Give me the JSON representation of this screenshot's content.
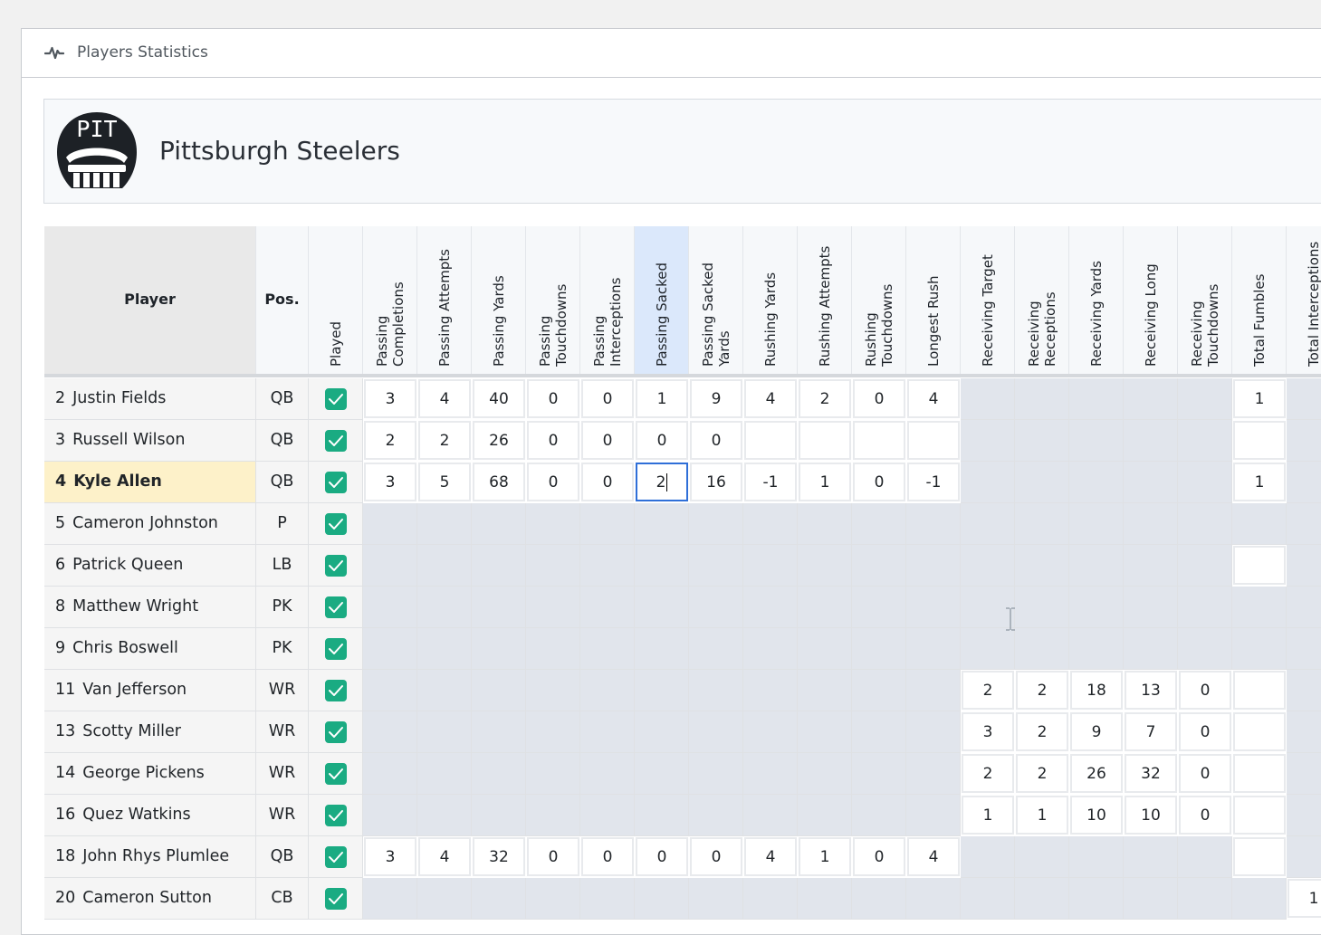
{
  "header": {
    "title": "Players Statistics",
    "icon": "pulse-icon"
  },
  "team": {
    "name": "Pittsburgh Steelers",
    "abbr": "PIT"
  },
  "columns": {
    "player": "Player",
    "pos": "Pos.",
    "played": "Played",
    "stats": [
      [
        "Passing",
        "Completions"
      ],
      [
        "Passing Attempts"
      ],
      [
        "Passing Yards"
      ],
      [
        "Passing",
        "Touchdowns"
      ],
      [
        "Passing",
        "Interceptions"
      ],
      [
        "Passing Sacked"
      ],
      [
        "Passing Sacked",
        "Yards"
      ],
      [
        "Rushing Yards"
      ],
      [
        "Rushing Attempts"
      ],
      [
        "Rushing",
        "Touchdowns"
      ],
      [
        "Longest Rush"
      ],
      [
        "Receiving Target"
      ],
      [
        "Receiving",
        "Receptions"
      ],
      [
        "Receiving Yards"
      ],
      [
        "Receiving Long"
      ],
      [
        "Receiving",
        "Touchdowns"
      ],
      [
        "Total Fumbles"
      ],
      [
        "Total Interceptions"
      ]
    ],
    "selected_stat_index": 5
  },
  "rows": [
    {
      "num": "2",
      "name": "Justin Fields",
      "pos": "QB",
      "played": true,
      "stats": [
        "3",
        "4",
        "40",
        "0",
        "0",
        "1",
        "9",
        "4",
        "2",
        "0",
        "4",
        null,
        null,
        null,
        null,
        null,
        "1",
        null
      ]
    },
    {
      "num": "3",
      "name": "Russell Wilson",
      "pos": "QB",
      "played": true,
      "stats": [
        "2",
        "2",
        "26",
        "0",
        "0",
        "0",
        "0",
        "",
        "",
        "",
        "",
        null,
        null,
        null,
        null,
        null,
        "",
        null
      ]
    },
    {
      "num": "4",
      "name": "Kyle Allen",
      "pos": "QB",
      "played": true,
      "highlighted": true,
      "stats": [
        "3",
        "5",
        "68",
        "0",
        "0",
        "2",
        "16",
        "-1",
        "1",
        "0",
        "-1",
        null,
        null,
        null,
        null,
        null,
        "1",
        null
      ]
    },
    {
      "num": "5",
      "name": "Cameron Johnston",
      "pos": "P",
      "played": true,
      "stats": [
        null,
        null,
        null,
        null,
        null,
        null,
        null,
        null,
        null,
        null,
        null,
        null,
        null,
        null,
        null,
        null,
        null,
        null
      ]
    },
    {
      "num": "6",
      "name": "Patrick Queen",
      "pos": "LB",
      "played": true,
      "stats": [
        null,
        null,
        null,
        null,
        null,
        null,
        null,
        null,
        null,
        null,
        null,
        null,
        null,
        null,
        null,
        null,
        "",
        null
      ]
    },
    {
      "num": "8",
      "name": "Matthew Wright",
      "pos": "PK",
      "played": true,
      "stats": [
        null,
        null,
        null,
        null,
        null,
        null,
        null,
        null,
        null,
        null,
        null,
        null,
        null,
        null,
        null,
        null,
        null,
        null
      ]
    },
    {
      "num": "9",
      "name": "Chris Boswell",
      "pos": "PK",
      "played": true,
      "stats": [
        null,
        null,
        null,
        null,
        null,
        null,
        null,
        null,
        null,
        null,
        null,
        null,
        null,
        null,
        null,
        null,
        null,
        null
      ]
    },
    {
      "num": "11",
      "name": "Van Jefferson",
      "pos": "WR",
      "played": true,
      "stats": [
        null,
        null,
        null,
        null,
        null,
        null,
        null,
        null,
        null,
        null,
        null,
        "2",
        "2",
        "18",
        "13",
        "0",
        "",
        null
      ]
    },
    {
      "num": "13",
      "name": "Scotty Miller",
      "pos": "WR",
      "played": true,
      "stats": [
        null,
        null,
        null,
        null,
        null,
        null,
        null,
        null,
        null,
        null,
        null,
        "3",
        "2",
        "9",
        "7",
        "0",
        "",
        null
      ]
    },
    {
      "num": "14",
      "name": "George Pickens",
      "pos": "WR",
      "played": true,
      "stats": [
        null,
        null,
        null,
        null,
        null,
        null,
        null,
        null,
        null,
        null,
        null,
        "2",
        "2",
        "26",
        "32",
        "0",
        "",
        null
      ]
    },
    {
      "num": "16",
      "name": "Quez Watkins",
      "pos": "WR",
      "played": true,
      "stats": [
        null,
        null,
        null,
        null,
        null,
        null,
        null,
        null,
        null,
        null,
        null,
        "1",
        "1",
        "10",
        "10",
        "0",
        "",
        null
      ]
    },
    {
      "num": "18",
      "name": "John Rhys Plumlee",
      "pos": "QB",
      "played": true,
      "stats": [
        "3",
        "4",
        "32",
        "0",
        "0",
        "0",
        "0",
        "4",
        "1",
        "0",
        "4",
        null,
        null,
        null,
        null,
        null,
        "",
        null
      ]
    },
    {
      "num": "20",
      "name": "Cameron Sutton",
      "pos": "CB",
      "played": true,
      "stats": [
        null,
        null,
        null,
        null,
        null,
        null,
        null,
        null,
        null,
        null,
        null,
        null,
        null,
        null,
        null,
        null,
        null,
        "1"
      ]
    }
  ],
  "active_cell": {
    "row": 2,
    "col": 5
  },
  "colors": {
    "checkbox": "#1aab82",
    "selected_header": "#dbe8fb",
    "highlight_row": "#fdf1c9",
    "disabled_cell": "#e1e5ec",
    "active_border": "#2f6fd8"
  }
}
